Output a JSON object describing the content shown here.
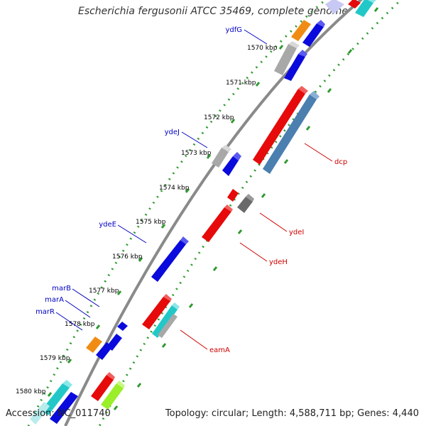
{
  "title": "Escherichia fergusonii ATCC 35469, complete genome",
  "footer": {
    "accession": "Accession: NC_011740",
    "topology": "Topology: circular; Length: 4,588,711 bp; Genes: 4,440"
  },
  "ticks": [
    "1570 kbp",
    "1571 kbp",
    "1572 kbp",
    "1573 kbp",
    "1574 kbp",
    "1575 kbp",
    "1576 kbp",
    "1577 kbp",
    "1578 kbp",
    "1579 kbp",
    "1580 kbp"
  ],
  "gene_labels": {
    "ydfG": "ydfG",
    "ydeJ": "ydeJ",
    "ydeE": "ydeE",
    "marB": "marB",
    "marA": "marA",
    "marR": "marR",
    "dcp": "dcp",
    "ydeI": "ydeI",
    "ydeH": "ydeH",
    "eamA": "eamA"
  },
  "colors": {
    "backbone": "#8a8a8a",
    "dots_ruler": "#2e9a2e",
    "tick_label": "#000000",
    "left_label": "#0000c0",
    "right_label": "#cc0000",
    "blue": "#0a0adc",
    "red": "#e60a0a",
    "steel": "#4a7fb0",
    "gray": "#a8a8a8",
    "darkgray": "#6a6a6a",
    "orange": "#f08c14",
    "cyan": "#22c8c8",
    "lime": "#9aee2a",
    "lavender": "#c8c8f4"
  }
}
